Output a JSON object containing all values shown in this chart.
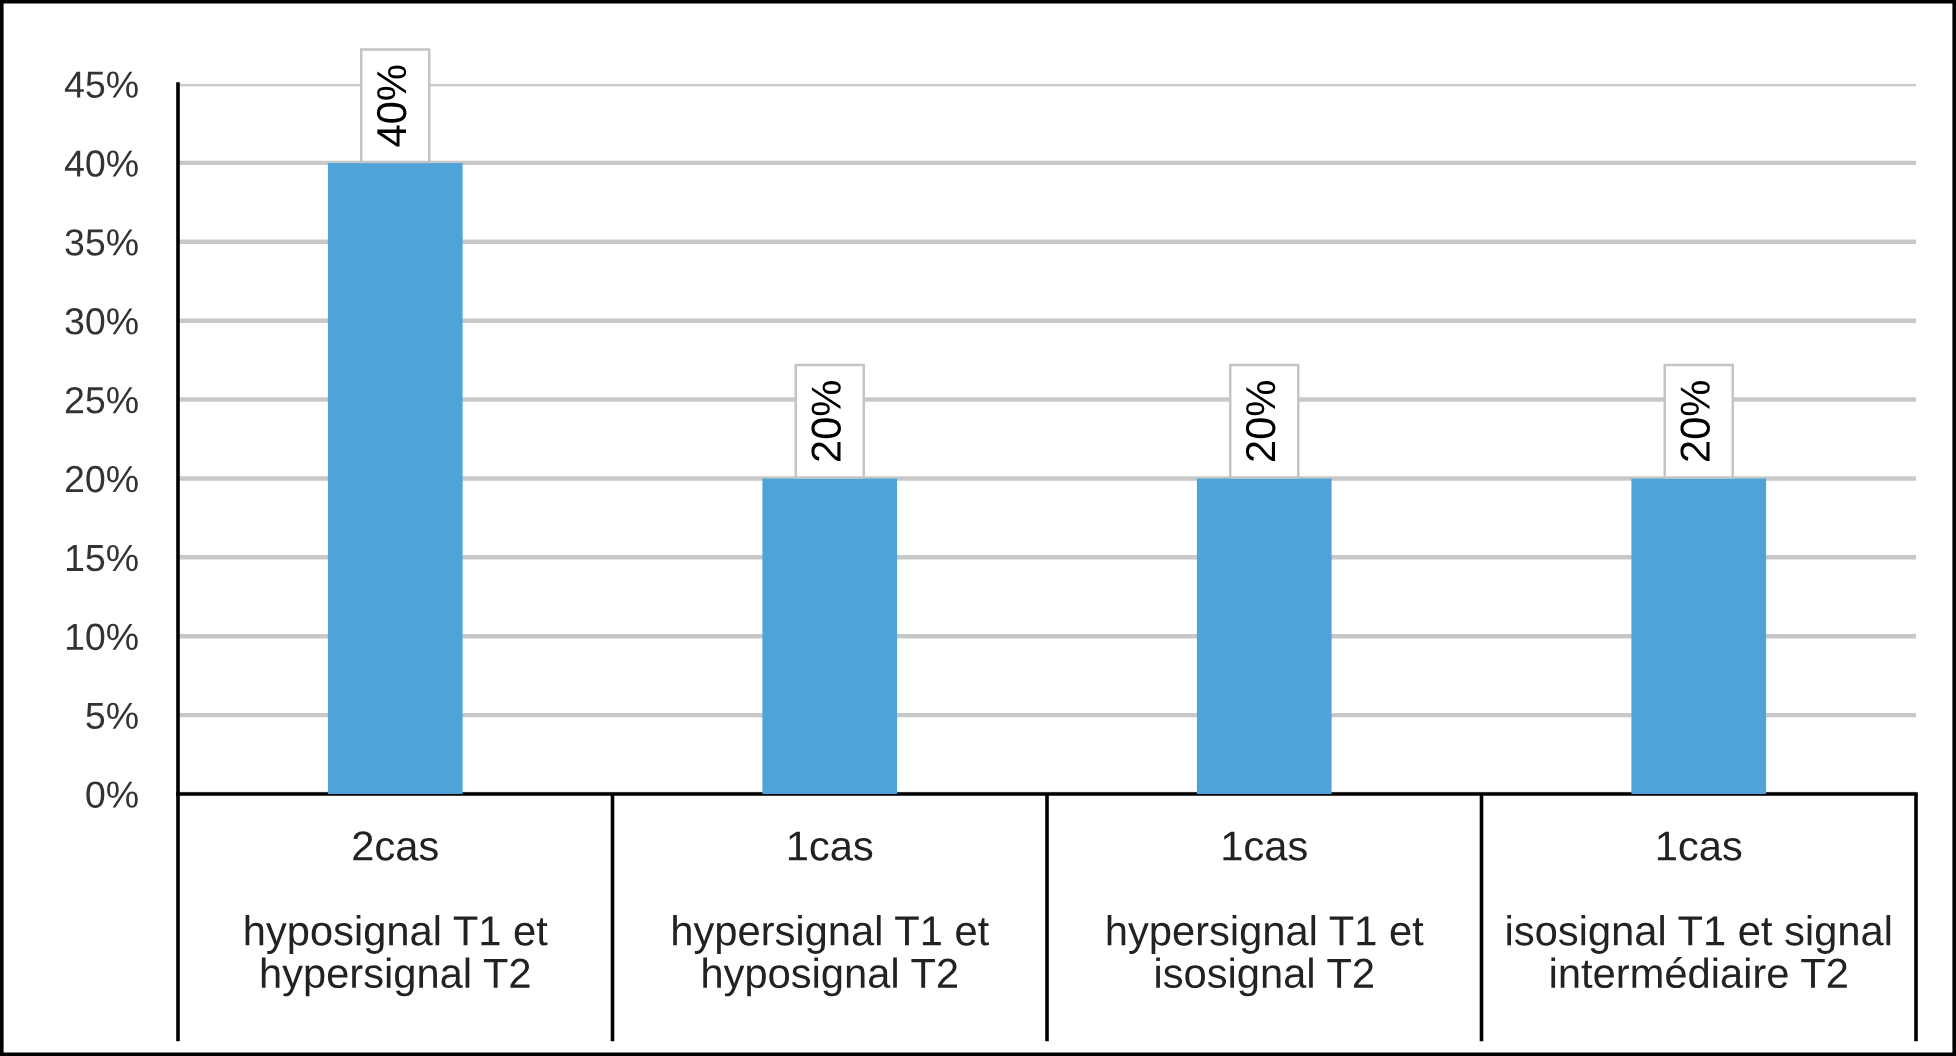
{
  "chart_data": {
    "type": "bar",
    "categories": [
      "2cas\n\nhyposignal T1 et\nhypersignal T2",
      "1cas\n\nhypersignal T1 et\nhyposignal T2",
      "1cas\n\nhypersignal T1 et\nisosignal T2",
      "1cas\n\nisosignal T1 et signal\nintermédiaire T2"
    ],
    "values": [
      40,
      20,
      20,
      20
    ],
    "color": "#4ea3d8",
    "value_labels": [
      "40%",
      "20%",
      "20%",
      "20%"
    ],
    "ylim": [
      0,
      45
    ],
    "yticks": [
      {
        "value": 0,
        "label": "0%"
      },
      {
        "value": 5,
        "label": "5%"
      },
      {
        "value": 10,
        "label": "10%"
      },
      {
        "value": 15,
        "label": "15%"
      },
      {
        "value": 20,
        "label": "20%"
      },
      {
        "value": 25,
        "label": "25%"
      },
      {
        "value": 30,
        "label": "30%"
      },
      {
        "value": 35,
        "label": "35%"
      },
      {
        "value": 40,
        "label": "40%"
      },
      {
        "value": 45,
        "label": "45%"
      }
    ],
    "grid": "y"
  }
}
